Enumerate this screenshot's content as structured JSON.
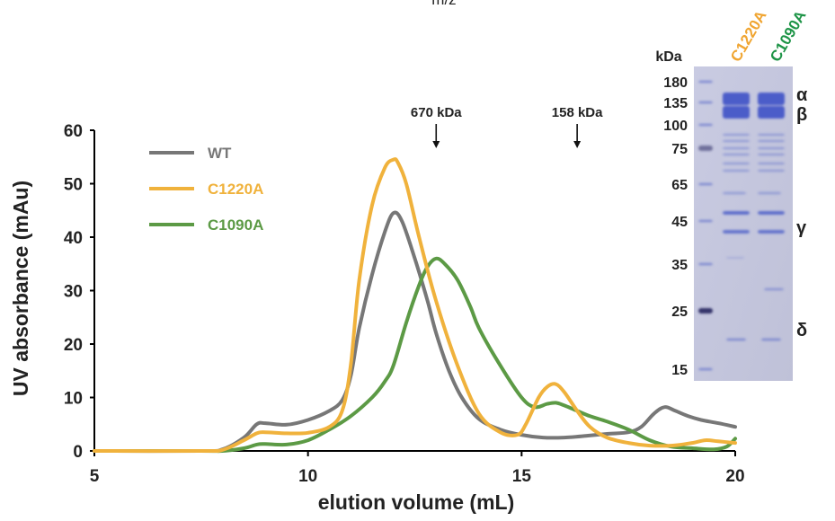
{
  "page_header": {
    "text": "m/z"
  },
  "chart_data": {
    "type": "line",
    "xlabel": "elution volume (mL)",
    "ylabel": "UV absorbance (mAu)",
    "xlim": [
      5,
      20
    ],
    "ylim": [
      0,
      60
    ],
    "x_ticks": [
      "5",
      "10",
      "15",
      "20"
    ],
    "y_ticks": [
      "0",
      "10",
      "20",
      "30",
      "40",
      "50",
      "60"
    ],
    "grid": false,
    "legend_position": "top-left",
    "series": [
      {
        "name": "WT",
        "color": "#777777",
        "x": [
          5,
          7.5,
          8.0,
          8.5,
          8.8,
          9.0,
          9.5,
          10.0,
          10.5,
          10.8,
          11.0,
          11.2,
          11.5,
          11.8,
          12.0,
          12.2,
          12.5,
          12.8,
          13.0,
          13.3,
          13.6,
          14.0,
          14.5,
          15.0,
          15.5,
          16.0,
          16.5,
          17.0,
          17.5,
          17.8,
          18.1,
          18.35,
          18.6,
          18.9,
          19.2,
          19.6,
          20.0
        ],
        "y": [
          0,
          0,
          0.3,
          2.5,
          5.0,
          5.2,
          4.9,
          5.8,
          7.5,
          9.5,
          14,
          23,
          33,
          41,
          44.5,
          43,
          36,
          28,
          22,
          15,
          10,
          6,
          4,
          3,
          2.5,
          2.5,
          2.8,
          3.2,
          3.5,
          4.5,
          7,
          8.2,
          7.5,
          6.5,
          5.8,
          5.2,
          4.5
        ]
      },
      {
        "name": "C1220A",
        "color": "#F0B23C",
        "x": [
          5,
          7.5,
          8.0,
          8.5,
          8.8,
          9.0,
          9.5,
          10.0,
          10.5,
          10.8,
          11.0,
          11.2,
          11.5,
          11.8,
          12.0,
          12.1,
          12.3,
          12.6,
          13.0,
          13.5,
          14.0,
          14.5,
          14.9,
          15.1,
          15.4,
          15.6,
          15.8,
          16.0,
          16.3,
          16.6,
          17.0,
          17.5,
          18.0,
          18.5,
          19.0,
          19.3,
          19.6,
          20.0
        ],
        "y": [
          0,
          0,
          0.2,
          2.0,
          3.3,
          3.5,
          3.3,
          3.4,
          4.5,
          7.5,
          16,
          32,
          46,
          53,
          54.5,
          54,
          50,
          40,
          28,
          16,
          7,
          3.5,
          3,
          5,
          10,
          12,
          12.5,
          11,
          7.5,
          4.5,
          2.5,
          1.5,
          1,
          1,
          1.5,
          2,
          1.8,
          1.5
        ]
      },
      {
        "name": "C1090A",
        "color": "#5C9A45",
        "x": [
          5,
          7.5,
          8.0,
          8.5,
          8.8,
          9.0,
          9.5,
          10.0,
          10.5,
          11.0,
          11.5,
          11.8,
          12.0,
          12.3,
          12.6,
          12.8,
          13.0,
          13.2,
          13.5,
          13.8,
          14.0,
          14.5,
          15.0,
          15.3,
          15.6,
          15.8,
          16.0,
          16.3,
          16.6,
          17.0,
          17.5,
          18.0,
          18.5,
          19.0,
          19.5,
          19.8,
          20.0
        ],
        "y": [
          0,
          0,
          0,
          0.5,
          1.2,
          1.3,
          1.2,
          2,
          4,
          6.5,
          10,
          13,
          16,
          24,
          31,
          34.5,
          36,
          35,
          32,
          27,
          23,
          16,
          10,
          8.2,
          8.8,
          9,
          8.5,
          7.5,
          6.5,
          5.5,
          4,
          2,
          0.8,
          0.5,
          0.3,
          0.8,
          2.3
        ]
      }
    ],
    "annotations": [
      {
        "label": "670 kDa",
        "x": 13.0
      },
      {
        "label": "158 kDa",
        "x": 16.3
      }
    ]
  },
  "gel_inset": {
    "title": "kDa",
    "lane_labels": [
      {
        "text": "C1220A",
        "color": "#F0A531"
      },
      {
        "text": "C1090A",
        "color": "#1E9447"
      }
    ],
    "ladder": [
      "180",
      "135",
      "100",
      "75",
      "65",
      "45",
      "35",
      "25",
      "15"
    ],
    "subunits": [
      "α",
      "β",
      "γ",
      "δ"
    ],
    "background_color": "#c4c6dd",
    "band_color": "#3d51c6"
  }
}
